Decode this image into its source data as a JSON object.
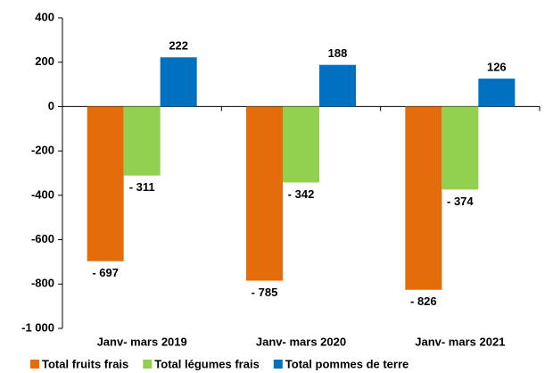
{
  "chart_data": {
    "type": "bar",
    "categories": [
      "Janv- mars 2019",
      "Janv- mars 2020",
      "Janv- mars 2021"
    ],
    "series": [
      {
        "name": "Total fruits frais",
        "color": "#e46c0a",
        "values": [
          -697,
          -785,
          -826
        ],
        "value_labels": [
          "- 697",
          "- 785",
          "- 826"
        ]
      },
      {
        "name": "Total légumes frais",
        "color": "#92d050",
        "values": [
          -311,
          -342,
          -374
        ],
        "value_labels": [
          "- 311",
          "- 342",
          "- 374"
        ]
      },
      {
        "name": "Total pommes de terre",
        "color": "#0070c0",
        "values": [
          222,
          188,
          126
        ]
      }
    ],
    "ylim": [
      -1000,
      400
    ],
    "yticks": [
      {
        "value": -1000,
        "label": "-1 000"
      },
      -800,
      -600,
      -400,
      -200,
      0,
      200,
      400
    ],
    "legend": "bottom"
  }
}
